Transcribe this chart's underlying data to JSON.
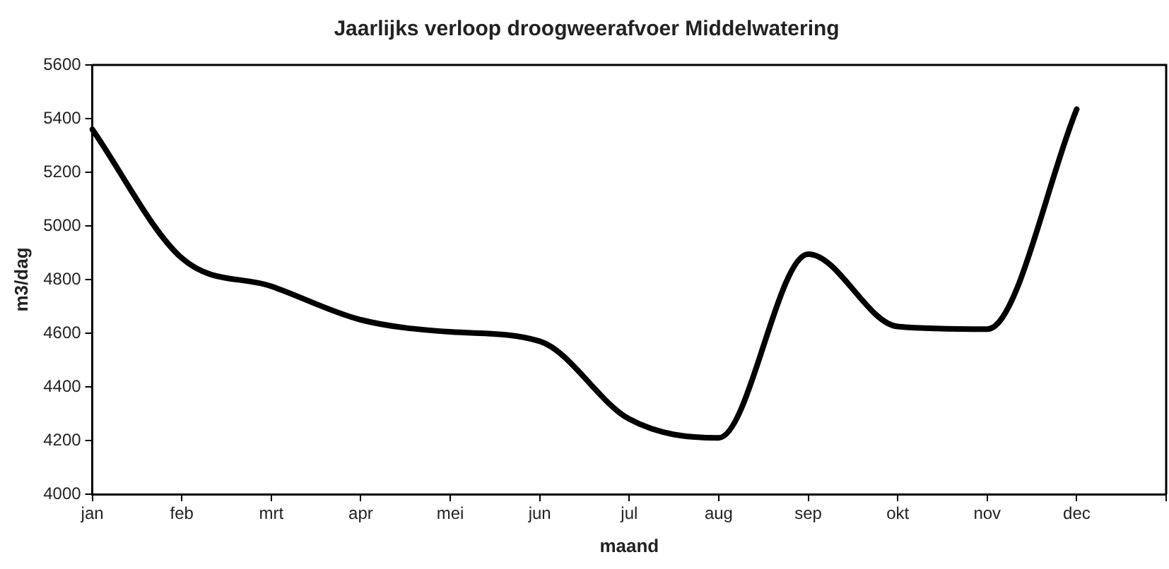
{
  "chart_data": {
    "type": "line",
    "title": "Jaarlijks verloop droogweerafvoer Middelwatering",
    "xlabel": "maand",
    "ylabel": "m3/dag",
    "categories": [
      "jan",
      "feb",
      "mrt",
      "apr",
      "mei",
      "jun",
      "jul",
      "aug",
      "sep",
      "okt",
      "nov",
      "dec",
      null
    ],
    "series": [
      {
        "color": "#000000",
        "values": [
          5360,
          4880,
          4775,
          4650,
          4605,
          4570,
          4280,
          4210,
          4895,
          4625,
          4615,
          5435,
          null
        ]
      }
    ],
    "ylim": [
      4000,
      5600
    ],
    "yticks": [
      4000,
      4200,
      4400,
      4600,
      4800,
      5000,
      5200,
      5400,
      5600
    ],
    "grid": false,
    "legend": false,
    "marker": "none",
    "line_style": "solid"
  }
}
